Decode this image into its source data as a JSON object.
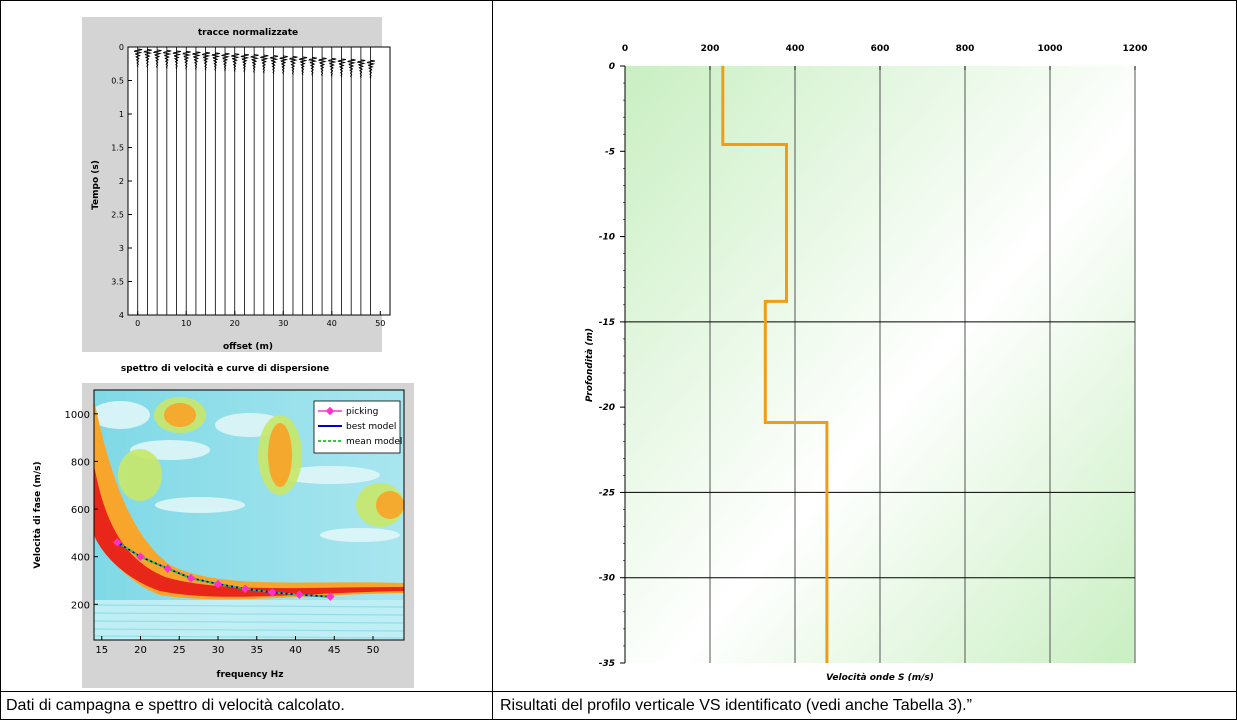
{
  "captions": {
    "left": "Dati di campagna e spettro di velocità calcolato.",
    "right": "Risultati del profilo verticale VS identificato (vedi anche Tabella 3).”"
  },
  "colors": {
    "profile_line": "#f39c12",
    "profile_bg": "#d6f2cf",
    "trace_line": "#000000",
    "picking": "#ff33cc",
    "best_model": "#0000cc",
    "mean_model": "#33cc33"
  },
  "chart_data": [
    {
      "type": "line",
      "title": "tracce normalizzate",
      "xlabel": "offset (m)",
      "ylabel": "Tempo (s)",
      "xlim": [
        -2,
        52
      ],
      "ylim": [
        4,
        0
      ],
      "x_ticks": [
        0,
        10,
        20,
        30,
        40,
        50
      ],
      "y_ticks": [
        0,
        0.5,
        1,
        1.5,
        2,
        2.5,
        3,
        3.5,
        4
      ],
      "trace_offsets": [
        0,
        2,
        4,
        6,
        8,
        10,
        12,
        14,
        16,
        18,
        20,
        22,
        24,
        26,
        28,
        30,
        32,
        34,
        36,
        38,
        40,
        42,
        44,
        46,
        48
      ]
    },
    {
      "type": "heatmap",
      "title": "spettro di velocità e curve di dispersione",
      "xlabel": "frequency Hz",
      "ylabel": "Velocità di fase (m/s)",
      "xlim": [
        14,
        54
      ],
      "ylim": [
        50,
        1100
      ],
      "x_ticks": [
        15,
        20,
        25,
        30,
        35,
        40,
        45,
        50
      ],
      "y_ticks": [
        200,
        400,
        600,
        800,
        1000
      ],
      "legend": {
        "placement": "top-right",
        "entries": [
          "picking",
          "best model",
          "mean model"
        ]
      },
      "series": [
        {
          "name": "picking",
          "x": [
            17,
            20,
            23.5,
            26.5,
            30,
            33.5,
            37,
            40.5,
            44.5
          ],
          "y": [
            460,
            400,
            350,
            310,
            285,
            265,
            250,
            240,
            232
          ]
        }
      ]
    },
    {
      "type": "line",
      "title": "",
      "xlabel": "Velocità onde S (m/s)",
      "ylabel": "Profondità (m)",
      "xlim": [
        0,
        1200
      ],
      "ylim": [
        -35,
        0
      ],
      "x_ticks": [
        0,
        200,
        400,
        600,
        800,
        1000,
        1200
      ],
      "x_tick_labels": [
        "0",
        "200",
        "400",
        "600",
        "800",
        "1000",
        "1200"
      ],
      "y_ticks": [
        0,
        -5,
        -10,
        -15,
        -20,
        -25,
        -30,
        -35
      ],
      "y_tick_labels": [
        "0",
        "-5",
        "-10",
        "-15",
        "-20",
        "-25",
        "-30",
        "-35"
      ],
      "series": [
        {
          "name": "",
          "x": [
            230,
            230,
            380,
            380,
            330,
            330,
            475,
            475
          ],
          "y": [
            0,
            -4.6,
            -4.6,
            -13.8,
            -13.8,
            -20.9,
            -20.9,
            -35
          ]
        }
      ]
    }
  ]
}
